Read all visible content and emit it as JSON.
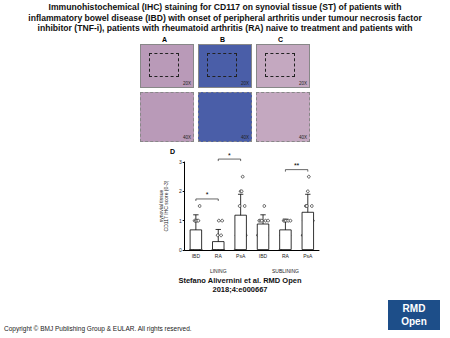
{
  "header": {
    "title": [
      "Immunohistochemical (IHC) staining for CD117 on synovial tissue (ST) of patients with",
      "inflammatory bowel disease (IBD) with onset of peripheral arthritis under tumour necrosis factor",
      "inhibitor (TNF-i), patients with rheumatoid arthritis (RA) naive to treatment and patients with"
    ]
  },
  "panels": [
    {
      "letter": "A",
      "tone": "#b99ab8",
      "top_label": "20X",
      "bottom_label": "40X"
    },
    {
      "letter": "B",
      "tone": "#4a5ea8",
      "top_label": "20X",
      "bottom_label": "40X"
    },
    {
      "letter": "C",
      "tone": "#c4a8c0",
      "top_label": "20X",
      "bottom_label": "40X"
    }
  ],
  "chart_data": {
    "type": "bar",
    "letter": "D",
    "y_label": "synovial tissue\nCD117 IHC score (0-3)",
    "categories": [
      "IBD",
      "RA",
      "PsA",
      "IBD",
      "RA",
      "PsA"
    ],
    "groups": [
      "LINING",
      "SUBLINING"
    ],
    "values": [
      0.7,
      0.3,
      1.2,
      0.9,
      0.7,
      1.3
    ],
    "errors": [
      0.5,
      0.4,
      0.7,
      0.3,
      0.35,
      0.6
    ],
    "points": [
      [
        0,
        0,
        0.5,
        1,
        1,
        1,
        1,
        1.5,
        0
      ],
      [
        0,
        0,
        0,
        0,
        0.5,
        1,
        0,
        0.5,
        1,
        0
      ],
      [
        0,
        0.5,
        1,
        1,
        1.5,
        2,
        2,
        2.5,
        1,
        1.5,
        0.5
      ],
      [
        0.5,
        1,
        1,
        1,
        0.5,
        1.5,
        1,
        0.5,
        1
      ],
      [
        0,
        0.5,
        0.5,
        1,
        1,
        1,
        0.5,
        1,
        0.5,
        1
      ],
      [
        0.5,
        1,
        1,
        1.5,
        1.5,
        2,
        2.5,
        1,
        0.5,
        1.5,
        1
      ]
    ],
    "color": "#ffffff",
    "point_color": "#000000",
    "marker": "circle",
    "ylim": [
      0,
      3
    ],
    "yticks": [
      0,
      1,
      2,
      3
    ],
    "grid": false,
    "annotations": [
      {
        "from": 0,
        "to": 1,
        "label": "*"
      },
      {
        "from": 1,
        "to": 2,
        "label": "*"
      },
      {
        "from": 4,
        "to": 5,
        "label": "**"
      }
    ]
  },
  "citation": "Stefano Alivernini et al. RMD Open 2018;4:e000667",
  "copyright": "Copyright © BMJ Publishing Group & EULAR. All rights reserved.",
  "logo": {
    "line1": "RMD",
    "line2": "Open"
  }
}
